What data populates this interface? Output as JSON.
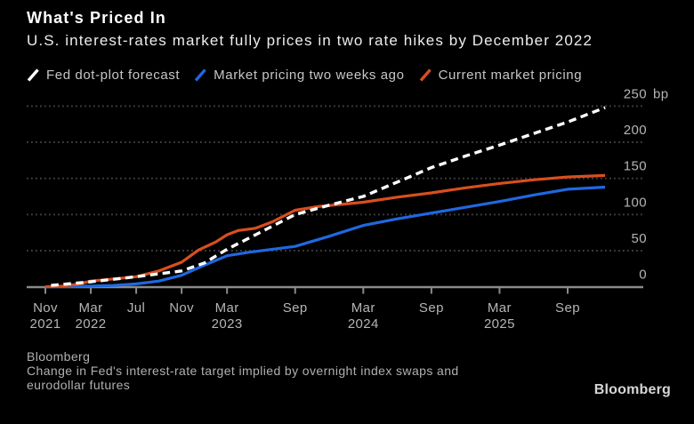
{
  "header": {
    "title": "What's Priced In",
    "subtitle": "U.S. interest-rates market fully prices in two rate hikes by December 2022"
  },
  "legend": [
    {
      "key": "fed-dot-plot",
      "label": "Fed dot-plot forecast",
      "color": "#ffffff",
      "dashed": true
    },
    {
      "key": "two-weeks-ago",
      "label": "Market pricing two weeks ago",
      "color": "#1f68e0",
      "dashed": false
    },
    {
      "key": "current",
      "label": "Current market pricing",
      "color": "#d94e1f",
      "dashed": false
    }
  ],
  "footer": {
    "source": "Bloomberg",
    "note_line1": "Change in Fed's interest-rate target implied by overnight index swaps and",
    "note_line2": "eurodollar futures",
    "logo": "Bloomberg"
  },
  "chart_data": {
    "type": "line",
    "title": "What's Priced In",
    "subtitle": "U.S. interest-rates market fully prices in two rate hikes by December 2022",
    "x_unit": "months since Nov 2021",
    "xlim": [
      0,
      52.5
    ],
    "ylim": [
      0,
      250
    ],
    "y_unit": "bp",
    "grid": "dotted-horizontal",
    "legend_position": "top",
    "yticks": [
      {
        "value": 0,
        "label": "0"
      },
      {
        "value": 50,
        "label": "50"
      },
      {
        "value": 100,
        "label": "100"
      },
      {
        "value": 150,
        "label": "150"
      },
      {
        "value": 200,
        "label": "200"
      },
      {
        "value": 250,
        "label": "250",
        "suffix": "bp"
      }
    ],
    "xticks": [
      {
        "m": 0,
        "line1": "Nov",
        "line2": "2021"
      },
      {
        "m": 4,
        "line1": "Mar",
        "line2": "2022"
      },
      {
        "m": 8,
        "line1": "Jul",
        "line2": ""
      },
      {
        "m": 12,
        "line1": "Nov",
        "line2": ""
      },
      {
        "m": 16,
        "line1": "Mar",
        "line2": "2023"
      },
      {
        "m": 22,
        "line1": "Sep",
        "line2": ""
      },
      {
        "m": 28,
        "line1": "Mar",
        "line2": "2024"
      },
      {
        "m": 34,
        "line1": "Sep",
        "line2": ""
      },
      {
        "m": 40,
        "line1": "Mar",
        "line2": "2025"
      },
      {
        "m": 46,
        "line1": "Sep",
        "line2": ""
      }
    ],
    "series": [
      {
        "key": "fed-dot-plot",
        "name": "Fed dot-plot forecast",
        "color": "#ffffff",
        "dashed": true,
        "points_month_bp": [
          [
            0.5,
            2
          ],
          [
            4,
            7
          ],
          [
            8,
            14
          ],
          [
            12,
            22
          ],
          [
            14,
            33
          ],
          [
            16,
            52
          ],
          [
            19,
            76
          ],
          [
            22,
            100
          ],
          [
            25,
            113
          ],
          [
            28,
            125
          ],
          [
            31,
            145
          ],
          [
            34,
            165
          ],
          [
            37,
            181
          ],
          [
            40,
            196
          ],
          [
            43,
            212
          ],
          [
            46,
            228
          ],
          [
            49.3,
            248
          ]
        ]
      },
      {
        "key": "two-weeks-ago",
        "name": "Market pricing two weeks ago",
        "color": "#1f68e0",
        "dashed": false,
        "points_month_bp": [
          [
            0,
            0
          ],
          [
            4,
            1
          ],
          [
            6,
            2
          ],
          [
            8,
            4
          ],
          [
            10,
            8
          ],
          [
            12,
            16
          ],
          [
            14,
            30
          ],
          [
            16,
            43
          ],
          [
            18,
            48
          ],
          [
            20,
            52
          ],
          [
            22,
            56
          ],
          [
            25,
            70
          ],
          [
            28,
            85
          ],
          [
            31,
            94
          ],
          [
            34,
            102
          ],
          [
            37,
            110
          ],
          [
            40,
            118
          ],
          [
            43,
            127
          ],
          [
            46,
            135
          ],
          [
            49.3,
            138
          ]
        ]
      },
      {
        "key": "current",
        "name": "Current market pricing",
        "color": "#d94e1f",
        "dashed": false,
        "points_month_bp": [
          [
            0,
            0
          ],
          [
            1.5,
            1
          ],
          [
            3,
            4
          ],
          [
            4,
            8
          ],
          [
            6,
            11
          ],
          [
            8,
            14
          ],
          [
            10,
            22
          ],
          [
            12,
            34
          ],
          [
            13.5,
            51
          ],
          [
            15,
            62
          ],
          [
            16,
            72
          ],
          [
            17,
            78
          ],
          [
            18.5,
            81
          ],
          [
            20,
            90
          ],
          [
            22,
            106
          ],
          [
            24,
            111
          ],
          [
            26,
            114
          ],
          [
            28,
            117
          ],
          [
            31,
            124
          ],
          [
            34,
            130
          ],
          [
            37,
            137
          ],
          [
            40,
            143
          ],
          [
            43,
            148
          ],
          [
            46,
            152
          ],
          [
            49.3,
            154
          ]
        ]
      }
    ]
  }
}
